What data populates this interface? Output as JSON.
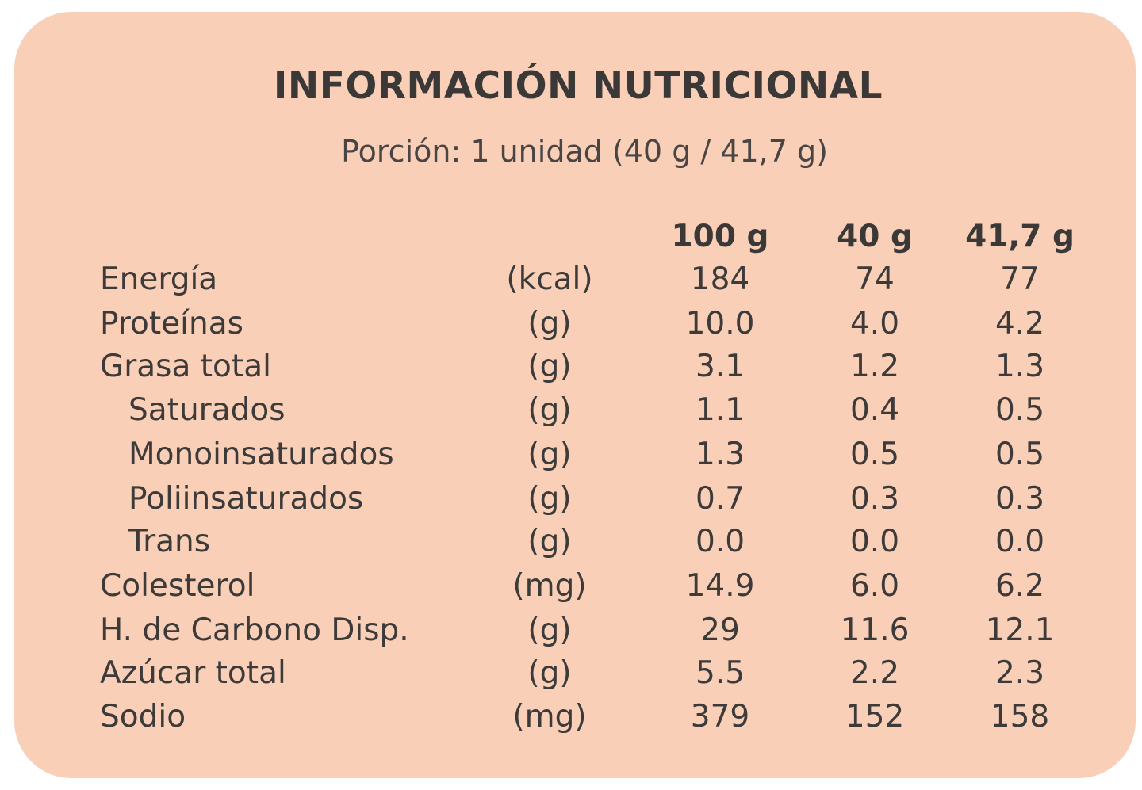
{
  "card": {
    "title": "INFORMACIÓN NUTRICIONAL",
    "serving": "Porción: 1 unidad (40 g / 41,7 g)",
    "background_color": "#F9CFB7",
    "text_color": "#3D3A3A"
  },
  "table": {
    "columns": [
      "",
      "",
      "100 g",
      "40 g",
      "41,7 g"
    ],
    "rows": [
      {
        "nutrient": "Energía",
        "unit": "(kcal)",
        "per_100g": "184",
        "per_40g": "74",
        "per_41_7g": "77",
        "indent": false
      },
      {
        "nutrient": "Proteínas",
        "unit": "(g)",
        "per_100g": "10.0",
        "per_40g": "4.0",
        "per_41_7g": "4.2",
        "indent": false
      },
      {
        "nutrient": "Grasa total",
        "unit": "(g)",
        "per_100g": "3.1",
        "per_40g": "1.2",
        "per_41_7g": "1.3",
        "indent": false
      },
      {
        "nutrient": "Saturados",
        "unit": "(g)",
        "per_100g": "1.1",
        "per_40g": "0.4",
        "per_41_7g": "0.5",
        "indent": true
      },
      {
        "nutrient": "Monoinsaturados",
        "unit": "(g)",
        "per_100g": "1.3",
        "per_40g": "0.5",
        "per_41_7g": "0.5",
        "indent": true
      },
      {
        "nutrient": "Poliinsaturados",
        "unit": "(g)",
        "per_100g": "0.7",
        "per_40g": "0.3",
        "per_41_7g": "0.3",
        "indent": true
      },
      {
        "nutrient": "Trans",
        "unit": "(g)",
        "per_100g": "0.0",
        "per_40g": "0.0",
        "per_41_7g": "0.0",
        "indent": true
      },
      {
        "nutrient": "Colesterol",
        "unit": "(mg)",
        "per_100g": "14.9",
        "per_40g": "6.0",
        "per_41_7g": "6.2",
        "indent": false
      },
      {
        "nutrient": "H. de Carbono Disp.",
        "unit": "(g)",
        "per_100g": "29",
        "per_40g": "11.6",
        "per_41_7g": "12.1",
        "indent": false
      },
      {
        "nutrient": "Azúcar total",
        "unit": "(g)",
        "per_100g": "5.5",
        "per_40g": "2.2",
        "per_41_7g": "2.3",
        "indent": false
      },
      {
        "nutrient": "Sodio",
        "unit": "(mg)",
        "per_100g": "379",
        "per_40g": "152",
        "per_41_7g": "158",
        "indent": false
      }
    ]
  }
}
